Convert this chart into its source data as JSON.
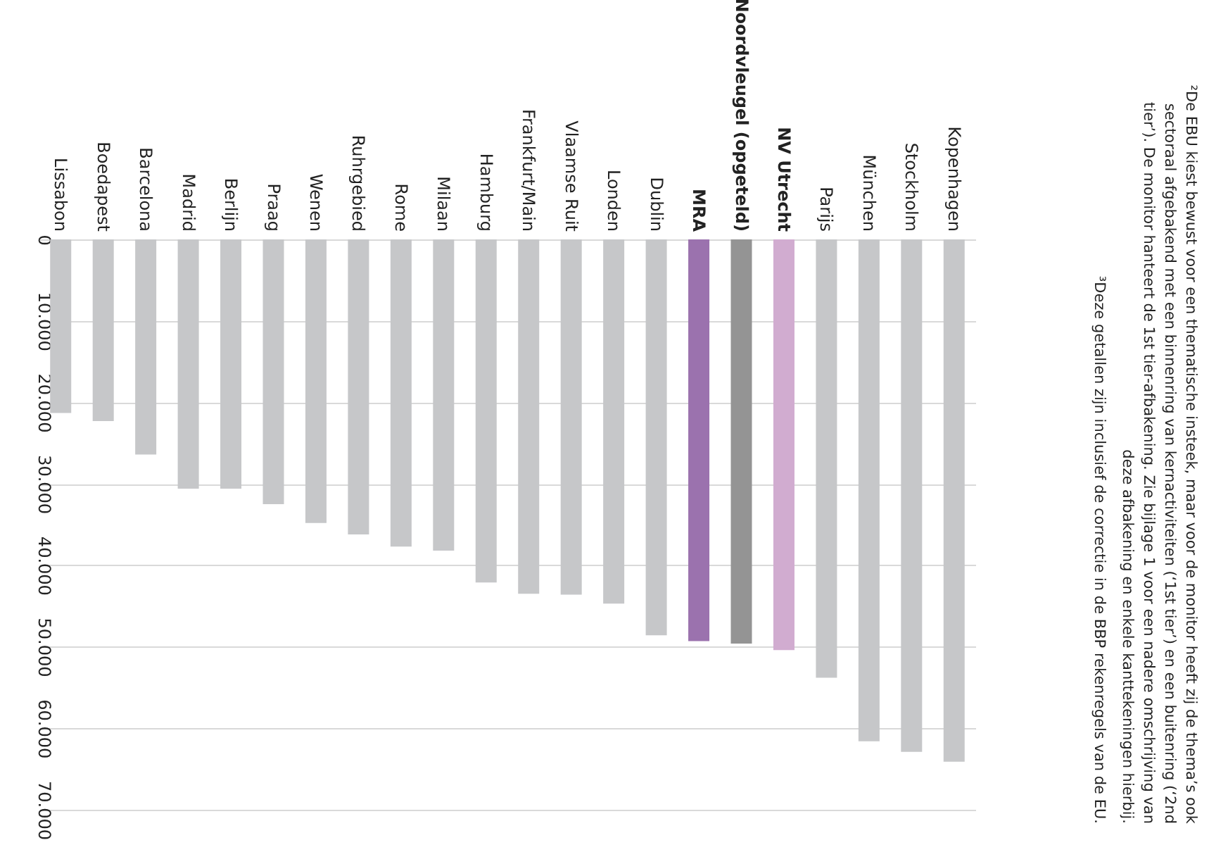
{
  "chart_data": {
    "type": "bar",
    "categories": [
      "Lissabon",
      "Boedapest",
      "Barcelona",
      "Madrid",
      "Berlijn",
      "Praag",
      "Wenen",
      "Ruhrgebied",
      "Rome",
      "Milaan",
      "Hamburg",
      "Frankfurt/Main",
      "Vlaamse Ruit",
      "Londen",
      "Dublin",
      "MRA",
      "Noordvleugel (opgeteld)",
      "NV Utrecht",
      "Parijs",
      "München",
      "Stockholm",
      "Kopenhagen"
    ],
    "values": [
      21300,
      22300,
      26400,
      30600,
      30600,
      32500,
      34800,
      36200,
      37700,
      38200,
      42100,
      43500,
      43600,
      44700,
      48600,
      49300,
      49600,
      50400,
      53800,
      61600,
      62900,
      64100
    ],
    "colors": [
      "#c6c7c9",
      "#c6c7c9",
      "#c6c7c9",
      "#c6c7c9",
      "#c6c7c9",
      "#c6c7c9",
      "#c6c7c9",
      "#c6c7c9",
      "#c6c7c9",
      "#c6c7c9",
      "#c6c7c9",
      "#c6c7c9",
      "#c6c7c9",
      "#c6c7c9",
      "#c6c7c9",
      "#9b72ae",
      "#949494",
      "#d1acd0",
      "#c6c7c9",
      "#c6c7c9",
      "#c6c7c9",
      "#c6c7c9"
    ],
    "ylim": [
      70000,
      0
    ],
    "yticks": [
      0,
      {
        "value": 10000,
        "label": "10.000"
      },
      {
        "value": 20000,
        "label": "20.000"
      },
      {
        "value": 30000,
        "label": "30.000"
      },
      {
        "value": 40000,
        "label": "40.000"
      },
      {
        "value": 50000,
        "label": "50.000"
      },
      {
        "value": 60000,
        "label": "60.000"
      },
      {
        "value": 70000,
        "label": "70.000"
      }
    ],
    "grid": "y",
    "annotations": [
      "²De EBU kiest bewust voor een thematische insteek, maar voor de monitor heeft zij de thema’s ook sectoraal afgebakend met een binnenring van kernactiviteiten (‘1st tier’) en een buitenring (‘2nd tier’). De monitor hanteert de 1st tier-afbakening. Zie bijlage 1 voor een nadere omschrijving van deze afbakening en enkele kanttekeningen hierbij.",
      "³Deze getallen zijn inclusief de correctie in de BBP rekenregels van de EU."
    ]
  }
}
